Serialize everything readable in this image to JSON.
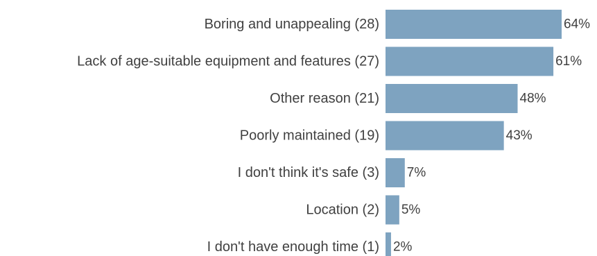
{
  "chart_data": {
    "type": "bar",
    "orientation": "horizontal",
    "categories": [
      "Boring and unappealing (28)",
      "Lack of age-suitable equipment and features (27)",
      "Other reason (21)",
      "Poorly maintained (19)",
      "I don't think it's safe (3)",
      "Location (2)",
      "I don't have enough time (1)"
    ],
    "values": [
      64,
      61,
      48,
      43,
      7,
      5,
      2
    ],
    "value_labels": [
      "64%",
      "61%",
      "48%",
      "43%",
      "7%",
      "5%",
      "2%"
    ],
    "bar_color": "#7ea3c0",
    "xlim": [
      0,
      64
    ],
    "grid": false,
    "legend": "none"
  }
}
